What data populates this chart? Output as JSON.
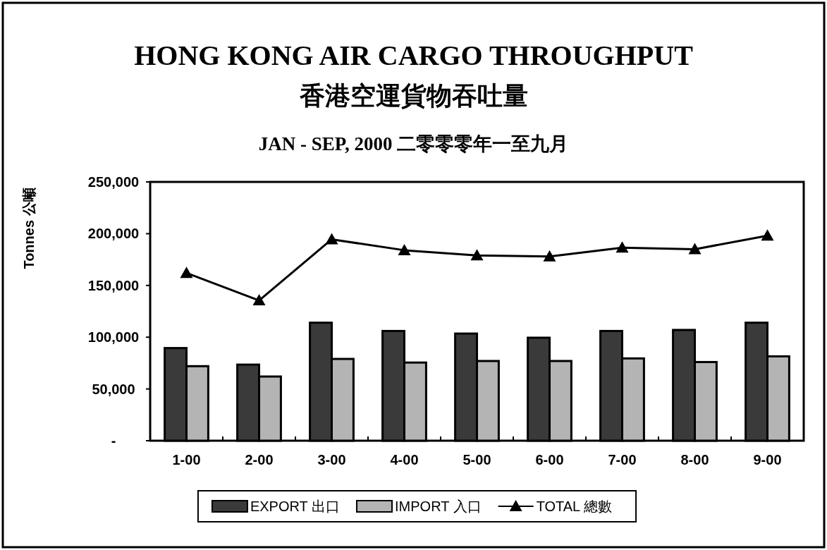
{
  "chart_data": {
    "type": "bar",
    "title": "HONG KONG AIR CARGO THROUGHPUT\n香港空運貨物吞吐量",
    "subtitle": "JAN - SEP, 2000  二零零零年一至九月",
    "ylabel": "Tonnes 公噸",
    "categories": [
      "1-00",
      "2-00",
      "3-00",
      "4-00",
      "5-00",
      "6-00",
      "7-00",
      "8-00",
      "9-00"
    ],
    "series": [
      {
        "name": "EXPORT 出口",
        "color": "#3a3a3a",
        "values": [
          89500,
          73500,
          114000,
          106000,
          103500,
          99500,
          106000,
          107000,
          114000
        ]
      },
      {
        "name": "IMPORT 入口",
        "color": "#b4b4b4",
        "values": [
          72000,
          62000,
          79000,
          75500,
          77000,
          77000,
          79500,
          76000,
          81500
        ]
      },
      {
        "name": "TOTAL 總數",
        "type": "line",
        "color": "#000000",
        "marker": "triangle",
        "line_style": "solid",
        "values": [
          162000,
          135500,
          194500,
          184000,
          179000,
          178000,
          186500,
          185000,
          198000
        ]
      }
    ],
    "ylim": [
      0,
      250000
    ],
    "yticks": [
      {
        "value": 0,
        "label": "-"
      },
      {
        "value": 50000,
        "label": "50,000"
      },
      {
        "value": 100000,
        "label": "100,000"
      },
      {
        "value": 150000,
        "label": "150,000"
      },
      {
        "value": 200000,
        "label": "200,000"
      },
      {
        "value": 250000,
        "label": "250,000"
      }
    ],
    "legend": "bottom"
  }
}
